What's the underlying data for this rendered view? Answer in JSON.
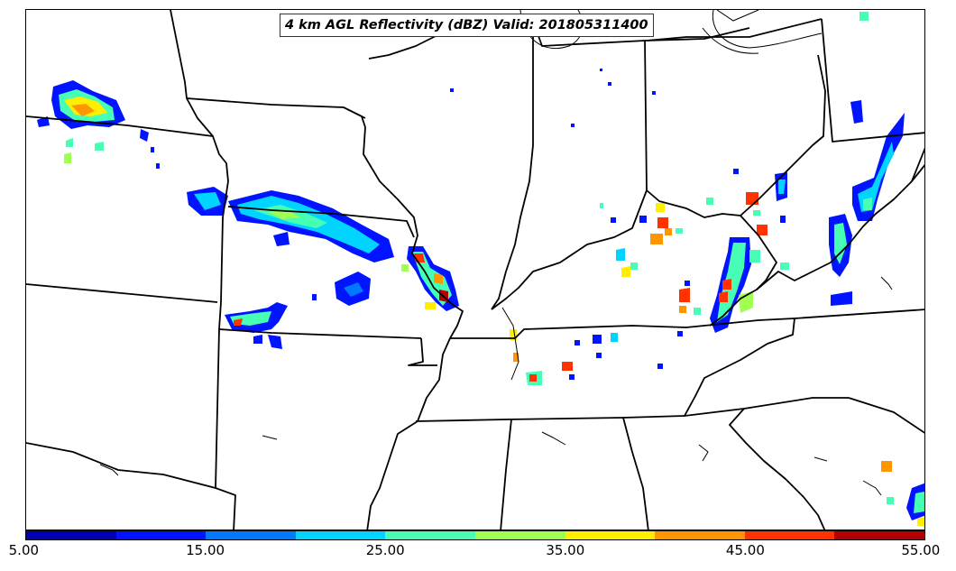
{
  "map": {
    "title": "4 km AGL Reflectivity (dBZ) Valid: 201805311400"
  },
  "colorbar": {
    "colors": [
      "#0000b4",
      "#0014ff",
      "#0078ff",
      "#00d4ff",
      "#46ffb4",
      "#a0ff50",
      "#ffee00",
      "#ff9600",
      "#ff3200",
      "#b40000"
    ],
    "ticks": [
      "5.00",
      "15.00",
      "25.00",
      "35.00",
      "45.00",
      "55.00"
    ],
    "range": [
      5,
      55
    ]
  }
}
